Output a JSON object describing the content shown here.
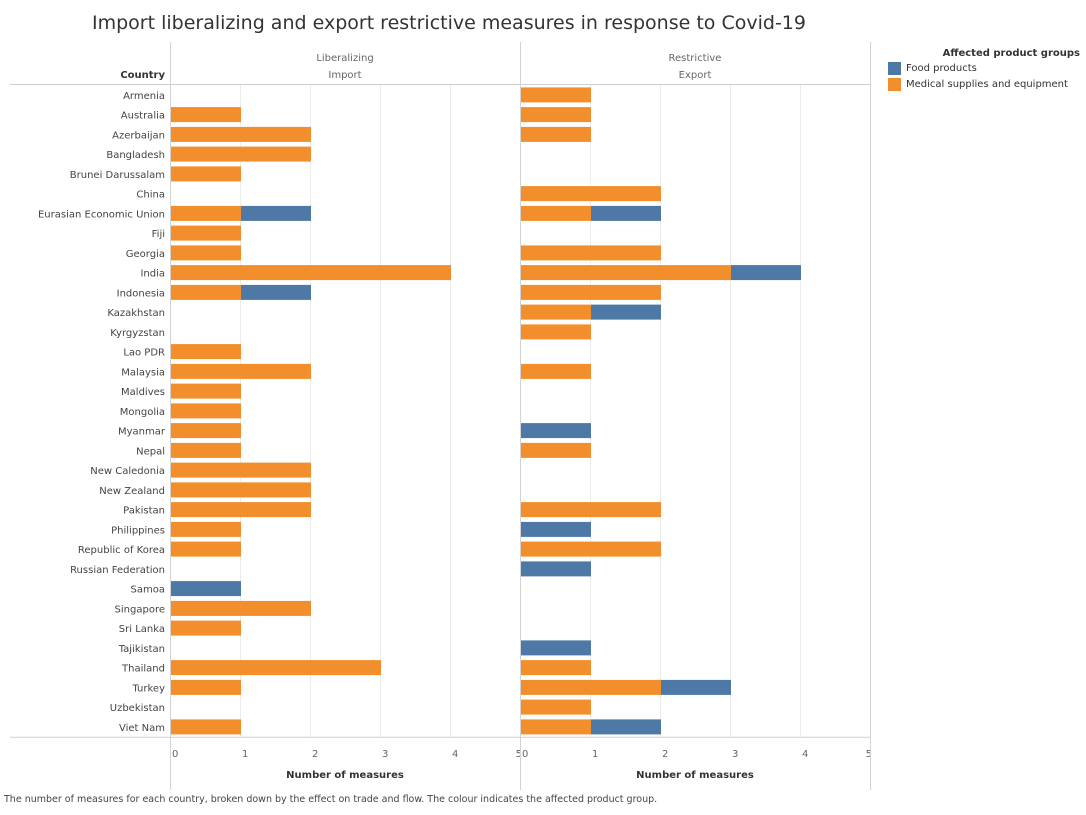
{
  "chart_data": {
    "type": "bar",
    "title": "Import liberalizing and export restrictive measures in response to Covid-19",
    "row_header": "Country",
    "categories": [
      "Armenia",
      "Australia",
      "Azerbaijan",
      "Bangladesh",
      "Brunei Darussalam",
      "China",
      "Eurasian Economic Union",
      "Fiji",
      "Georgia",
      "India",
      "Indonesia",
      "Kazakhstan",
      "Kyrgyzstan",
      "Lao PDR",
      "Malaysia",
      "Maldives",
      "Mongolia",
      "Myanmar",
      "Nepal",
      "New Caledonia",
      "New Zealand",
      "Pakistan",
      "Philippines",
      "Republic of Korea",
      "Russian Federation",
      "Samoa",
      "Singapore",
      "Sri Lanka",
      "Tajikistan",
      "Thailand",
      "Turkey",
      "Uzbekistan",
      "Viet Nam"
    ],
    "panels": [
      {
        "header_top": "Liberalizing",
        "header_bottom": "Import",
        "xlabel": "Number of measures",
        "xlim": [
          0,
          5
        ],
        "ticks": [
          "0",
          "1",
          "2",
          "3",
          "4",
          "5"
        ],
        "series": [
          {
            "name": "Medical supplies and equipment",
            "values": [
              0,
              1,
              2,
              2,
              1,
              0,
              1,
              1,
              1,
              4,
              1,
              0,
              0,
              1,
              2,
              1,
              1,
              1,
              1,
              2,
              2,
              2,
              1,
              1,
              0,
              0,
              2,
              1,
              0,
              3,
              1,
              0,
              1
            ]
          },
          {
            "name": "Food products",
            "values": [
              0,
              0,
              0,
              0,
              0,
              0,
              1,
              0,
              0,
              0,
              1,
              0,
              0,
              0,
              0,
              0,
              0,
              0,
              0,
              0,
              0,
              0,
              0,
              0,
              0,
              1,
              0,
              0,
              0,
              0,
              0,
              0,
              0
            ]
          }
        ]
      },
      {
        "header_top": "Restrictive",
        "header_bottom": "Export",
        "xlabel": "Number of measures",
        "xlim": [
          0,
          5
        ],
        "ticks": [
          "0",
          "1",
          "2",
          "3",
          "4",
          "5"
        ],
        "series": [
          {
            "name": "Medical supplies and equipment",
            "values": [
              1,
              1,
              1,
              0,
              0,
              2,
              1,
              0,
              2,
              3,
              2,
              1,
              1,
              0,
              1,
              0,
              0,
              0,
              1,
              0,
              0,
              2,
              0,
              2,
              0,
              0,
              0,
              0,
              0,
              1,
              2,
              1,
              1
            ]
          },
          {
            "name": "Food products",
            "values": [
              0,
              0,
              0,
              0,
              0,
              0,
              1,
              0,
              0,
              1,
              0,
              1,
              0,
              0,
              0,
              0,
              0,
              1,
              0,
              0,
              0,
              0,
              1,
              0,
              1,
              0,
              0,
              0,
              1,
              0,
              1,
              0,
              1
            ]
          }
        ]
      }
    ],
    "stack_order": [
      "Medical supplies and equipment",
      "Food products"
    ],
    "colors": {
      "Medical supplies and equipment": "#f28e2b",
      "Food products": "#4e79a7"
    },
    "legend": {
      "title": "Affected product groups",
      "items": [
        "Food products",
        "Medical supplies and equipment"
      ],
      "position": "top-right"
    },
    "grid": true
  },
  "caption": "The number of measures for each country, broken down by the effect on trade and flow. The colour indicates the affected product group."
}
